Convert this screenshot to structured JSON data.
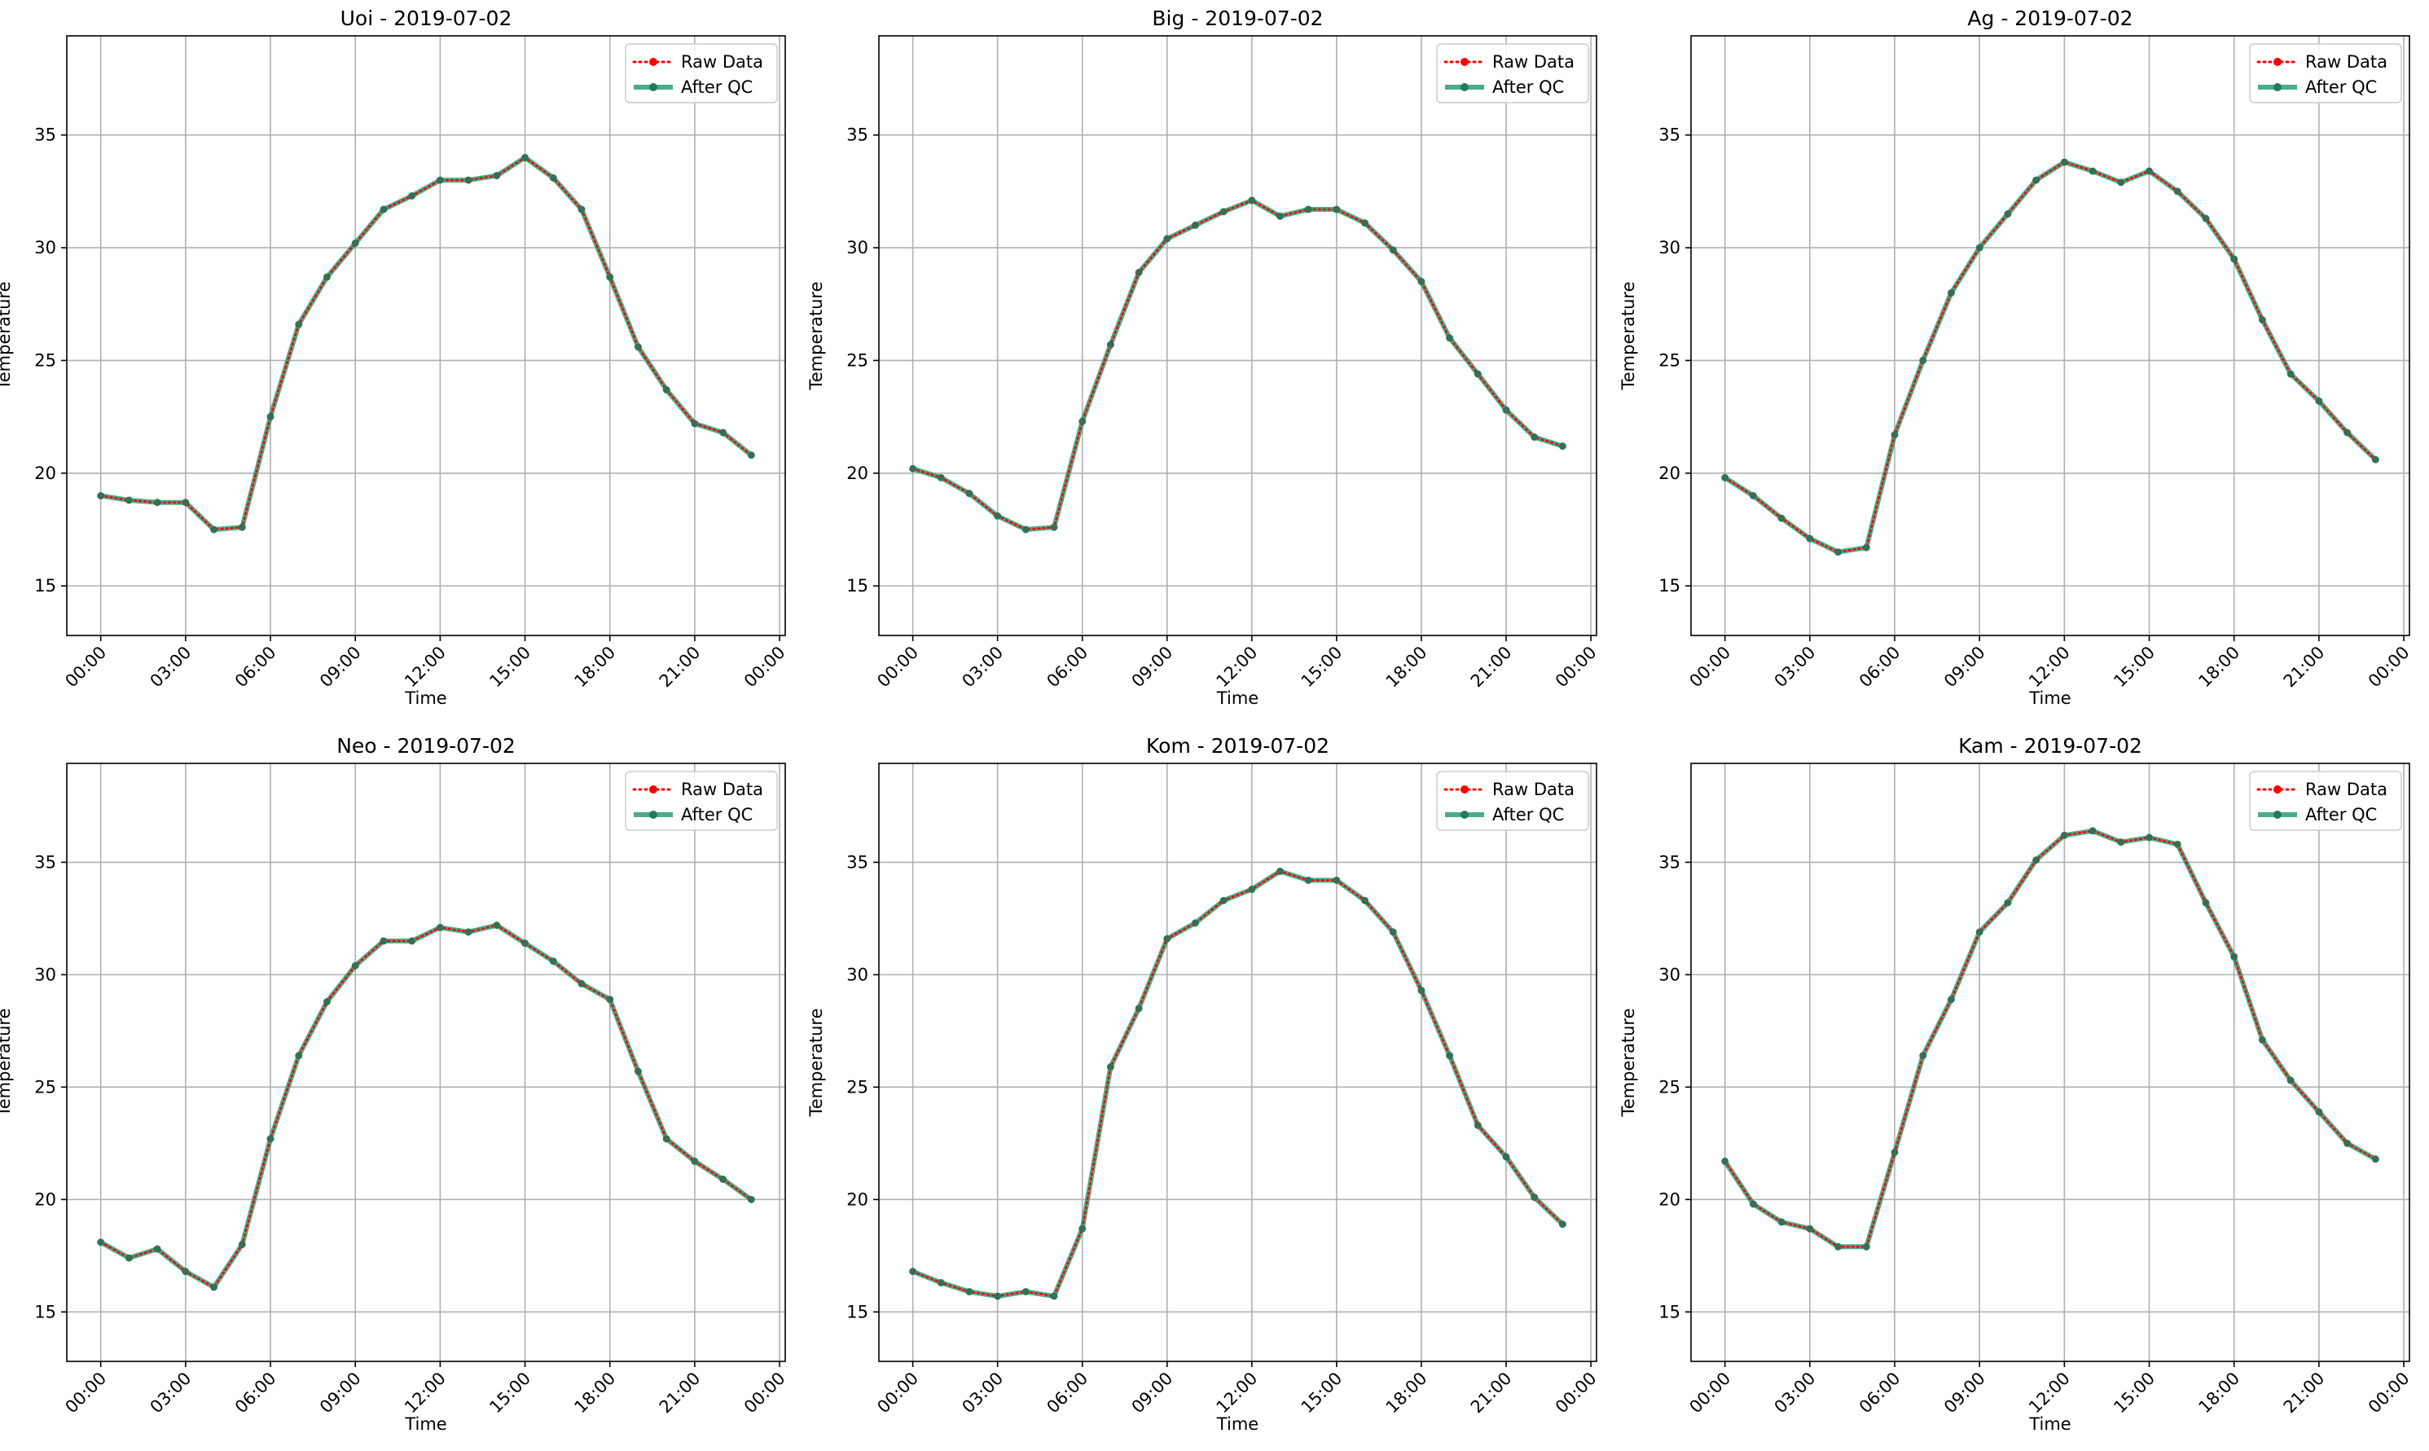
{
  "figure": {
    "colors": {
      "raw": "#ff0000",
      "qc": "#2a9d75",
      "grid": "#b0b0b0",
      "axis": "#000000"
    }
  },
  "chart_data": [
    {
      "type": "line",
      "title": "Uoi - 2019-07-02",
      "xlabel": "Time",
      "ylabel": "Temperature",
      "xtick_labels": [
        "00:00",
        "03:00",
        "06:00",
        "09:00",
        "12:00",
        "15:00",
        "18:00",
        "21:00",
        "00:00"
      ],
      "xlim_hours": [
        -1.2,
        24.2
      ],
      "ylim": [
        12.8,
        39.4
      ],
      "yticks": [
        15,
        20,
        25,
        30,
        35
      ],
      "grid": true,
      "legend": "top-right",
      "x_hours": [
        0,
        1,
        2,
        3,
        4,
        5,
        6,
        7,
        8,
        9,
        10,
        11,
        12,
        13,
        14,
        15,
        16,
        17,
        18,
        19,
        20,
        21,
        22,
        23
      ],
      "series": [
        {
          "name": "Raw Data",
          "style": "dotted",
          "values": [
            19.0,
            18.8,
            18.7,
            18.7,
            17.5,
            17.6,
            22.5,
            26.6,
            28.7,
            30.2,
            31.7,
            32.3,
            33.0,
            33.0,
            33.2,
            34.0,
            33.1,
            31.7,
            28.7,
            25.6,
            23.7,
            22.2,
            21.8,
            20.8
          ]
        },
        {
          "name": "After QC",
          "style": "solid",
          "values": [
            19.0,
            18.8,
            18.7,
            18.7,
            17.5,
            17.6,
            22.5,
            26.6,
            28.7,
            30.2,
            31.7,
            32.3,
            33.0,
            33.0,
            33.2,
            34.0,
            33.1,
            31.7,
            28.7,
            25.6,
            23.7,
            22.2,
            21.8,
            20.8
          ]
        }
      ]
    },
    {
      "type": "line",
      "title": "Big - 2019-07-02",
      "xlabel": "Time",
      "ylabel": "Temperature",
      "xtick_labels": [
        "00:00",
        "03:00",
        "06:00",
        "09:00",
        "12:00",
        "15:00",
        "18:00",
        "21:00",
        "00:00"
      ],
      "xlim_hours": [
        -1.2,
        24.2
      ],
      "ylim": [
        12.8,
        39.4
      ],
      "yticks": [
        15,
        20,
        25,
        30,
        35
      ],
      "grid": true,
      "legend": "top-right",
      "x_hours": [
        0,
        1,
        2,
        3,
        4,
        5,
        6,
        7,
        8,
        9,
        10,
        11,
        12,
        13,
        14,
        15,
        16,
        17,
        18,
        19,
        20,
        21,
        22,
        23
      ],
      "series": [
        {
          "name": "Raw Data",
          "style": "dotted",
          "values": [
            20.2,
            19.8,
            19.1,
            18.1,
            17.5,
            17.6,
            22.3,
            25.7,
            28.9,
            30.4,
            31.0,
            31.6,
            32.1,
            31.4,
            31.7,
            31.7,
            31.1,
            29.9,
            28.5,
            26.0,
            24.4,
            22.8,
            21.6,
            21.2
          ]
        },
        {
          "name": "After QC",
          "style": "solid",
          "values": [
            20.2,
            19.8,
            19.1,
            18.1,
            17.5,
            17.6,
            22.3,
            25.7,
            28.9,
            30.4,
            31.0,
            31.6,
            32.1,
            31.4,
            31.7,
            31.7,
            31.1,
            29.9,
            28.5,
            26.0,
            24.4,
            22.8,
            21.6,
            21.2
          ]
        }
      ]
    },
    {
      "type": "line",
      "title": "Ag - 2019-07-02",
      "xlabel": "Time",
      "ylabel": "Temperature",
      "xtick_labels": [
        "00:00",
        "03:00",
        "06:00",
        "09:00",
        "12:00",
        "15:00",
        "18:00",
        "21:00",
        "00:00"
      ],
      "xlim_hours": [
        -1.2,
        24.2
      ],
      "ylim": [
        12.8,
        39.4
      ],
      "yticks": [
        15,
        20,
        25,
        30,
        35
      ],
      "grid": true,
      "legend": "top-right",
      "x_hours": [
        0,
        1,
        2,
        3,
        4,
        5,
        6,
        7,
        8,
        9,
        10,
        11,
        12,
        13,
        14,
        15,
        16,
        17,
        18,
        19,
        20,
        21,
        22,
        23
      ],
      "series": [
        {
          "name": "Raw Data",
          "style": "dotted",
          "values": [
            19.8,
            19.0,
            18.0,
            17.1,
            16.5,
            16.7,
            21.7,
            25.0,
            28.0,
            30.0,
            31.5,
            33.0,
            33.8,
            33.4,
            32.9,
            33.4,
            32.5,
            31.3,
            29.5,
            26.8,
            24.4,
            23.2,
            21.8,
            20.6
          ]
        },
        {
          "name": "After QC",
          "style": "solid",
          "values": [
            19.8,
            19.0,
            18.0,
            17.1,
            16.5,
            16.7,
            21.7,
            25.0,
            28.0,
            30.0,
            31.5,
            33.0,
            33.8,
            33.4,
            32.9,
            33.4,
            32.5,
            31.3,
            29.5,
            26.8,
            24.4,
            23.2,
            21.8,
            20.6
          ]
        }
      ]
    },
    {
      "type": "line",
      "title": "Neo - 2019-07-02",
      "xlabel": "Time",
      "ylabel": "Temperature",
      "xtick_labels": [
        "00:00",
        "03:00",
        "06:00",
        "09:00",
        "12:00",
        "15:00",
        "18:00",
        "21:00",
        "00:00"
      ],
      "xlim_hours": [
        -1.2,
        24.2
      ],
      "ylim": [
        12.8,
        39.4
      ],
      "yticks": [
        15,
        20,
        25,
        30,
        35
      ],
      "grid": true,
      "legend": "top-right",
      "x_hours": [
        0,
        1,
        2,
        3,
        4,
        5,
        6,
        7,
        8,
        9,
        10,
        11,
        12,
        13,
        14,
        15,
        16,
        17,
        18,
        19,
        20,
        21,
        22,
        23
      ],
      "series": [
        {
          "name": "Raw Data",
          "style": "dotted",
          "values": [
            18.1,
            17.4,
            17.8,
            16.8,
            16.1,
            18.0,
            22.7,
            26.4,
            28.8,
            30.4,
            31.5,
            31.5,
            32.1,
            31.9,
            32.2,
            31.4,
            30.6,
            29.6,
            28.9,
            25.7,
            22.7,
            21.7,
            20.9,
            20.0
          ]
        },
        {
          "name": "After QC",
          "style": "solid",
          "values": [
            18.1,
            17.4,
            17.8,
            16.8,
            16.1,
            18.0,
            22.7,
            26.4,
            28.8,
            30.4,
            31.5,
            31.5,
            32.1,
            31.9,
            32.2,
            31.4,
            30.6,
            29.6,
            28.9,
            25.7,
            22.7,
            21.7,
            20.9,
            20.0
          ]
        }
      ]
    },
    {
      "type": "line",
      "title": "Kom - 2019-07-02",
      "xlabel": "Time",
      "ylabel": "Temperature",
      "xtick_labels": [
        "00:00",
        "03:00",
        "06:00",
        "09:00",
        "12:00",
        "15:00",
        "18:00",
        "21:00",
        "00:00"
      ],
      "xlim_hours": [
        -1.2,
        24.2
      ],
      "ylim": [
        12.8,
        39.4
      ],
      "yticks": [
        15,
        20,
        25,
        30,
        35
      ],
      "grid": true,
      "legend": "top-right",
      "x_hours": [
        0,
        1,
        2,
        3,
        4,
        5,
        6,
        7,
        8,
        9,
        10,
        11,
        12,
        13,
        14,
        15,
        16,
        17,
        18,
        19,
        20,
        21,
        22,
        23
      ],
      "series": [
        {
          "name": "Raw Data",
          "style": "dotted",
          "values": [
            16.8,
            16.3,
            15.9,
            15.7,
            15.9,
            15.7,
            18.7,
            25.9,
            28.5,
            31.6,
            32.3,
            33.3,
            33.8,
            34.6,
            34.2,
            34.2,
            33.3,
            31.9,
            29.3,
            26.4,
            23.3,
            21.9,
            20.1,
            18.9
          ]
        },
        {
          "name": "After QC",
          "style": "solid",
          "values": [
            16.8,
            16.3,
            15.9,
            15.7,
            15.9,
            15.7,
            18.7,
            25.9,
            28.5,
            31.6,
            32.3,
            33.3,
            33.8,
            34.6,
            34.2,
            34.2,
            33.3,
            31.9,
            29.3,
            26.4,
            23.3,
            21.9,
            20.1,
            18.9
          ]
        }
      ]
    },
    {
      "type": "line",
      "title": "Kam - 2019-07-02",
      "xlabel": "Time",
      "ylabel": "Temperature",
      "xtick_labels": [
        "00:00",
        "03:00",
        "06:00",
        "09:00",
        "12:00",
        "15:00",
        "18:00",
        "21:00",
        "00:00"
      ],
      "xlim_hours": [
        -1.2,
        24.2
      ],
      "ylim": [
        12.8,
        39.4
      ],
      "yticks": [
        15,
        20,
        25,
        30,
        35
      ],
      "grid": true,
      "legend": "top-right",
      "x_hours": [
        0,
        1,
        2,
        3,
        4,
        5,
        6,
        7,
        8,
        9,
        10,
        11,
        12,
        13,
        14,
        15,
        16,
        17,
        18,
        19,
        20,
        21,
        22,
        23
      ],
      "series": [
        {
          "name": "Raw Data",
          "style": "dotted",
          "values": [
            21.7,
            19.8,
            19.0,
            18.7,
            17.9,
            17.9,
            22.1,
            26.4,
            28.9,
            31.9,
            33.2,
            35.1,
            36.2,
            36.4,
            35.9,
            36.1,
            35.8,
            33.2,
            30.8,
            27.1,
            25.3,
            23.9,
            22.5,
            21.8
          ]
        },
        {
          "name": "After QC",
          "style": "solid",
          "values": [
            21.7,
            19.8,
            19.0,
            18.7,
            17.9,
            17.9,
            22.1,
            26.4,
            28.9,
            31.9,
            33.2,
            35.1,
            36.2,
            36.4,
            35.9,
            36.1,
            35.8,
            33.2,
            30.8,
            27.1,
            25.3,
            23.9,
            22.5,
            21.8
          ]
        }
      ]
    }
  ]
}
